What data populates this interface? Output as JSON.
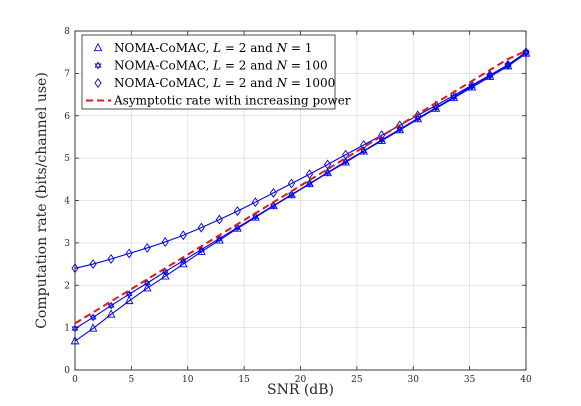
{
  "chart_data": {
    "type": "line",
    "xlabel": "SNR (dB)",
    "ylabel": "Computation rate (bits/channel use)",
    "xlim": [
      0,
      40
    ],
    "ylim": [
      0,
      8
    ],
    "xticks": [
      0,
      5,
      10,
      15,
      20,
      25,
      30,
      35,
      40
    ],
    "yticks": [
      0,
      1,
      2,
      3,
      4,
      5,
      6,
      7,
      8
    ],
    "grid": true,
    "legend_position": "top-left",
    "x": [
      0,
      1.6,
      3.2,
      4.8,
      6.4,
      8.0,
      9.6,
      11.2,
      12.8,
      14.4,
      16.0,
      17.6,
      19.2,
      20.8,
      22.4,
      24.0,
      25.6,
      27.2,
      28.8,
      30.4,
      32.0,
      33.6,
      35.2,
      36.8,
      38.4,
      40.0
    ],
    "series": [
      {
        "name": "NOMA-CoMAC, L = 2 and N = 1",
        "marker": "triangle",
        "color": "#0000ff",
        "values": [
          0.68,
          0.98,
          1.31,
          1.63,
          1.93,
          2.21,
          2.5,
          2.79,
          3.06,
          3.34,
          3.6,
          3.87,
          4.13,
          4.39,
          4.65,
          4.9,
          5.16,
          5.41,
          5.66,
          5.92,
          6.17,
          6.42,
          6.67,
          6.92,
          7.17,
          7.47
        ]
      },
      {
        "name": "NOMA-CoMAC, L = 2 and N = 100",
        "marker": "hexagram",
        "color": "#0000ff",
        "values": [
          0.98,
          1.24,
          1.52,
          1.79,
          2.05,
          2.32,
          2.58,
          2.84,
          3.1,
          3.36,
          3.62,
          3.88,
          4.14,
          4.4,
          4.66,
          4.92,
          5.17,
          5.43,
          5.68,
          5.94,
          6.19,
          6.44,
          6.7,
          6.95,
          7.2,
          7.5
        ]
      },
      {
        "name": "NOMA-CoMAC, L = 2 and N = 1000",
        "marker": "diamond",
        "color": "#0000ff",
        "values": [
          2.4,
          2.5,
          2.62,
          2.75,
          2.88,
          3.02,
          3.18,
          3.36,
          3.55,
          3.75,
          3.96,
          4.18,
          4.4,
          4.62,
          4.85,
          5.08,
          5.31,
          5.54,
          5.77,
          6.01,
          6.24,
          6.48,
          6.72,
          6.96,
          7.2,
          7.5
        ]
      },
      {
        "name": "Asymptotic rate with increasing power",
        "marker": "none",
        "dashed": true,
        "color": "#e31a1c",
        "values": [
          1.1,
          1.36,
          1.62,
          1.88,
          2.14,
          2.4,
          2.66,
          2.92,
          3.18,
          3.44,
          3.7,
          3.96,
          4.22,
          4.48,
          4.74,
          5.0,
          5.26,
          5.52,
          5.78,
          6.04,
          6.3,
          6.56,
          6.82,
          7.08,
          7.34,
          7.53
        ]
      }
    ],
    "legend_labels": [
      "NOMA-CoMAC, L = 2 and N = 1",
      "NOMA-CoMAC, L = 2 and N = 100",
      "NOMA-CoMAC, L = 2 and N = 1000",
      "Asymptotic rate with increasing power"
    ]
  }
}
